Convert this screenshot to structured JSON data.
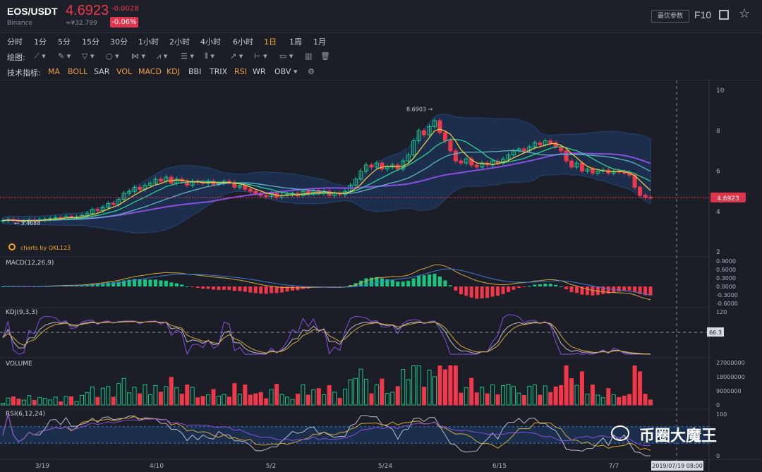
{
  "header": {
    "pair": "EOS/USDT",
    "exchange": "Binance",
    "price": "4.6923",
    "cny": "≈¥32.799",
    "change": "-0.0028",
    "change_pct": "-0.06%",
    "best_params": "最优参数",
    "f10": "F10"
  },
  "timeframes": [
    "分时",
    "1分",
    "5分",
    "15分",
    "30分",
    "1小时",
    "2小时",
    "4小时",
    "6小时",
    "1日",
    "1周",
    "1月"
  ],
  "active_timeframe": "1日",
  "draw_label": "绘图:",
  "indicator_label": "技术指标:",
  "indicators": [
    "MA",
    "BOLL",
    "SAR",
    "VOL",
    "MACD",
    "KDJ",
    "BBI",
    "TRIX",
    "RSI",
    "WR",
    "OBV"
  ],
  "highlighted_indicators": [
    "MA",
    "BOLL",
    "VOL",
    "MACD",
    "KDJ",
    "RSI"
  ],
  "colors": {
    "up": "#16c784",
    "down": "#f0384b",
    "ma_fast": "#f5c542",
    "ma_mid": "#2fd08a",
    "ma_slow": "#5fb3c9",
    "ma_long": "#8a4de0",
    "boll_fill": "#1d3a66"
  },
  "chart_data": [
    {
      "type": "candlestick",
      "name": "price",
      "ylim": [
        2,
        10
      ],
      "yticks": [
        2,
        4,
        6,
        8,
        10
      ],
      "x_tick_labels": [
        "3/19",
        "4/10",
        "5/2",
        "5/24",
        "6/15",
        "7/7"
      ],
      "last_price_label": "4.6923",
      "max_annotation": "8.6903",
      "min_annotation": "3.4688",
      "watermark": "charts by QKL123",
      "closes": [
        3.55,
        3.6,
        3.55,
        3.5,
        3.52,
        3.58,
        3.55,
        3.6,
        3.62,
        3.65,
        3.7,
        3.68,
        3.75,
        3.7,
        3.72,
        3.8,
        3.9,
        4.1,
        4.05,
        4.2,
        4.4,
        4.35,
        4.6,
        4.9,
        5.0,
        5.2,
        5.1,
        5.3,
        5.4,
        5.6,
        5.5,
        5.7,
        5.4,
        5.6,
        5.5,
        5.3,
        5.5,
        5.45,
        5.4,
        5.5,
        5.35,
        5.4,
        5.5,
        5.45,
        5.2,
        5.3,
        5.1,
        5.0,
        4.9,
        4.8,
        4.75,
        4.9,
        4.7,
        4.8,
        4.85,
        4.9,
        4.8,
        5.0,
        4.9,
        5.05,
        4.9,
        5.0,
        4.8,
        4.9,
        4.85,
        5.0,
        5.3,
        5.6,
        6.0,
        6.3,
        6.2,
        6.4,
        6.1,
        6.2,
        6.3,
        6.1,
        6.5,
        6.8,
        7.5,
        8.0,
        7.8,
        8.2,
        8.5,
        7.9,
        7.5,
        7.0,
        6.5,
        6.4,
        6.6,
        6.3,
        6.2,
        6.4,
        6.3,
        6.5,
        6.4,
        6.6,
        6.8,
        7.0,
        7.1,
        7.0,
        7.2,
        7.4,
        7.3,
        7.5,
        7.4,
        7.2,
        7.0,
        6.5,
        6.2,
        6.4,
        6.0,
        6.1,
        5.9,
        6.0,
        6.05,
        5.9,
        6.0,
        5.95,
        5.9,
        5.8,
        5.2,
        4.8,
        4.7,
        4.69
      ]
    },
    {
      "type": "line",
      "name": "MACD(12,26,9)",
      "yticks": [
        0.9,
        0.6,
        0.3,
        0.0,
        -0.3,
        -0.6
      ],
      "ytick_labels": [
        "0.9000",
        "0.6000",
        "0.3000",
        "0.0000",
        "-0.3000",
        "-0.6000"
      ]
    },
    {
      "type": "line",
      "name": "KDJ(9,3,3)",
      "yticks": [
        120
      ],
      "current_label": "66.3"
    },
    {
      "type": "bar",
      "name": "VOLUME",
      "yticks": [
        27000000,
        18000000,
        9000000,
        0
      ],
      "ytick_labels": [
        "27000000",
        "18000000",
        "9000000",
        "0"
      ]
    },
    {
      "type": "line",
      "name": "RSI(6,12,24)",
      "yticks": [
        100,
        0
      ],
      "ytick_labels": [
        "100",
        "0"
      ],
      "crosshair_time": "2019/07/19 08:00"
    }
  ],
  "watermark_brand": "币圈大魔王"
}
